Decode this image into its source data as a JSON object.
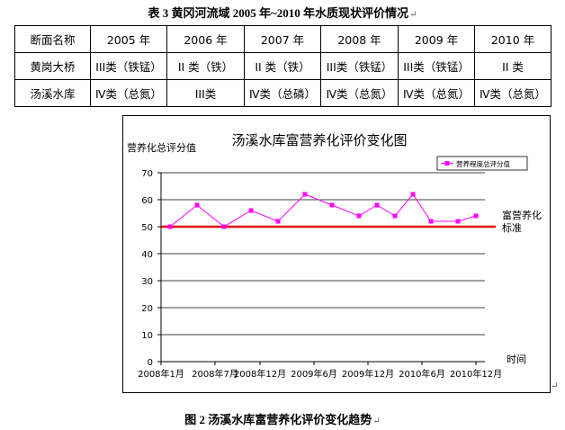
{
  "table_caption": "表 3   黄冈河流域 2005 年~2010 年水质现状评价情况",
  "table": {
    "header": [
      "断面名称",
      "2005 年",
      "2006 年",
      "2007 年",
      "2008 年",
      "2009 年",
      "2010 年"
    ],
    "rows": [
      [
        "黄岗大桥",
        "III类（铁锰）",
        "II 类（铁）",
        "II 类（铁）",
        "III类（铁锰）",
        "III类（铁锰）",
        "II 类"
      ],
      [
        "汤溪水库",
        "Ⅳ类（总氮）",
        "III类",
        "Ⅳ类（总磷）",
        "Ⅳ类（总氮）",
        "Ⅳ类（总氮）",
        "Ⅳ类（总氮）"
      ]
    ]
  },
  "figure_caption": "图 2   汤溪水库富营养化评价变化趋势",
  "colors": {
    "series": "#ff00ff",
    "threshold": "#e60000",
    "grid": "#000000"
  },
  "chart_data": {
    "type": "line",
    "title": "汤溪水库富营养化评价变化图",
    "ylabel": "营养化总评分值",
    "xlabel": "时间",
    "ylim": [
      0,
      70
    ],
    "yticks": [
      0,
      10,
      20,
      30,
      40,
      50,
      60,
      70
    ],
    "xlim": [
      "2008-01",
      "2011-01"
    ],
    "xticks": [
      {
        "x": "2008-01",
        "label": "2008年1月"
      },
      {
        "x": "2008-07",
        "label": "2008年7月"
      },
      {
        "x": "2008-12",
        "label": "2008年12月"
      },
      {
        "x": "2009-06",
        "label": "2009年6月"
      },
      {
        "x": "2009-12",
        "label": "2009年12月"
      },
      {
        "x": "2010-06",
        "label": "2010年6月"
      },
      {
        "x": "2010-12",
        "label": "2010年12月"
      }
    ],
    "grid": true,
    "legend_position": "top-right",
    "series": [
      {
        "name": "营养程度总评分值",
        "x": [
          "2008-02",
          "2008-05",
          "2008-08",
          "2008-11",
          "2009-02",
          "2009-05",
          "2009-08",
          "2009-11",
          "2010-01",
          "2010-03",
          "2010-05",
          "2010-07",
          "2010-10",
          "2010-12"
        ],
        "values": [
          50,
          58,
          50,
          56,
          52,
          62,
          58,
          54,
          58,
          54,
          62,
          52,
          52,
          54
        ]
      }
    ],
    "threshold": {
      "value": 50,
      "label_lines": [
        "富营养化",
        "标准"
      ]
    }
  }
}
